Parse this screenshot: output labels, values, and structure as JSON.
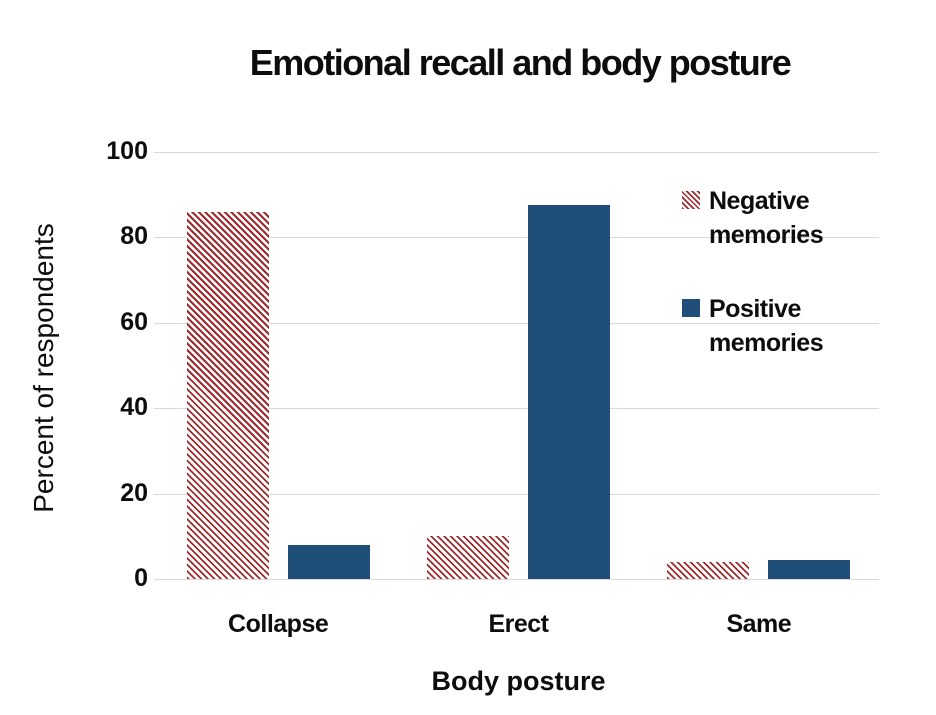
{
  "chart_data": {
    "type": "bar",
    "title": "Emotional recall and body posture",
    "xlabel": "Body posture",
    "ylabel": "Percent of respondents",
    "categories": [
      "Collapse",
      "Erect",
      "Same"
    ],
    "series": [
      {
        "name": "Negative memories",
        "values": [
          86,
          10,
          4
        ],
        "color": "#9E2A2B",
        "pattern": "diagonal-stripes"
      },
      {
        "name": "Positive memories",
        "values": [
          8,
          87.5,
          4.5
        ],
        "color": "#1F4E79",
        "pattern": "solid"
      }
    ],
    "ylim": [
      0,
      100
    ],
    "yticks": [
      0,
      20,
      40,
      60,
      80,
      100
    ],
    "grid": true,
    "legend_position": "inside-top-right"
  },
  "colors": {
    "negative_series": "#9E2A2B",
    "positive_series": "#1F4E79",
    "gridline": "#D9D9D9",
    "text": "#0d0d0d",
    "background": "#ffffff"
  }
}
